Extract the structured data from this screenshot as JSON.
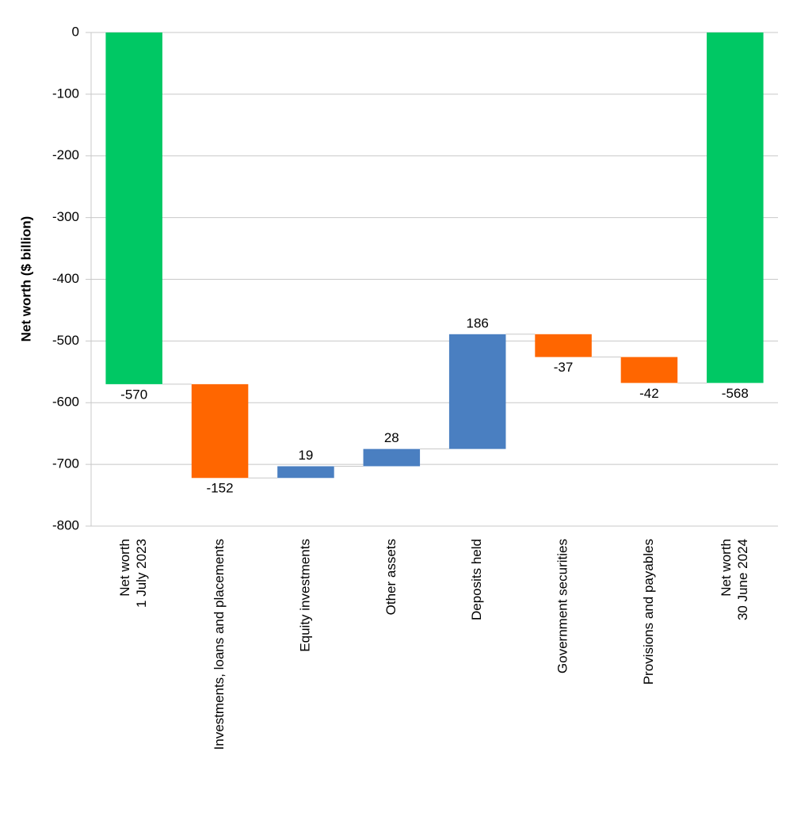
{
  "chart_data": {
    "type": "waterfall",
    "y_label": "Net worth ($ billion)",
    "categories": [
      [
        "Net worth",
        "1 July 2023"
      ],
      [
        "Investments, loans and placements"
      ],
      [
        "Equity investments"
      ],
      [
        "Other assets"
      ],
      [
        "Deposits held"
      ],
      [
        "Government securities"
      ],
      [
        "Provisions and payables"
      ],
      [
        "Net worth",
        "30 June 2024"
      ]
    ],
    "values": [
      -570,
      -152,
      19,
      28,
      186,
      -37,
      -42,
      -568
    ],
    "measure": [
      "absolute",
      "relative",
      "relative",
      "relative",
      "relative",
      "relative",
      "relative",
      "absolute"
    ],
    "total_color": "#00c864",
    "increase_color": "#4a7fc1",
    "decrease_color": "#ff6600",
    "ylim": [
      -800,
      0
    ],
    "yticks": [
      0,
      -100,
      -200,
      -300,
      -400,
      -500,
      -600,
      -700,
      -800
    ],
    "grid": true
  }
}
